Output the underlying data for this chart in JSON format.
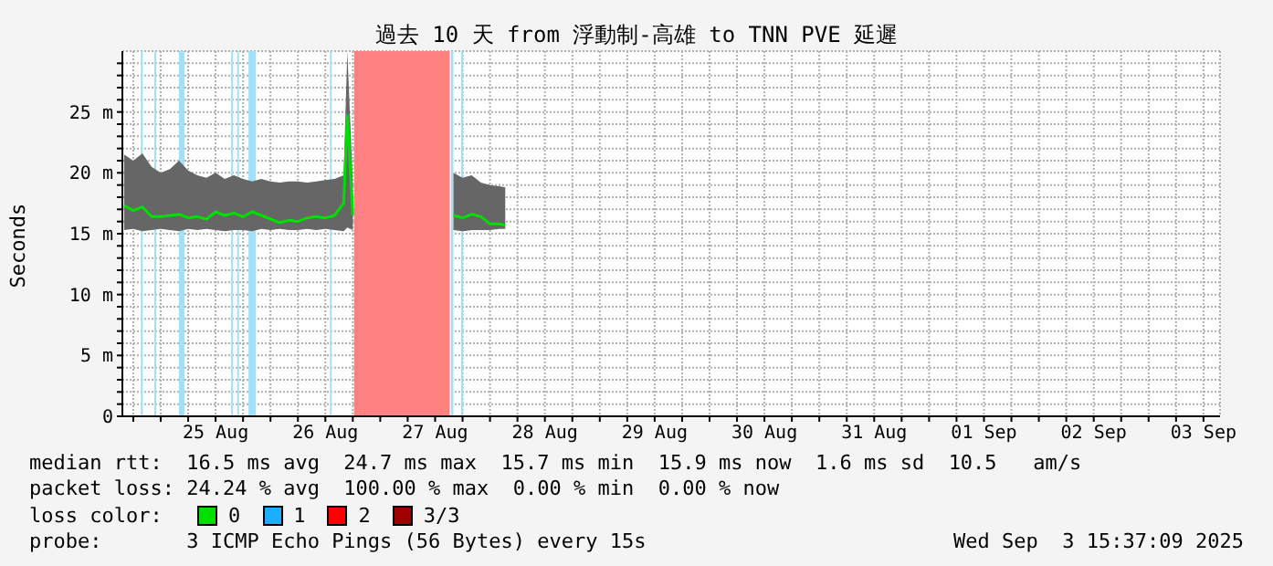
{
  "chart_data": {
    "type": "line",
    "title": "過去 10 天 from 浮動制-高雄 to TNN PVE 延遲",
    "ylabel": "Seconds",
    "legend_title": "loss color:",
    "legend": "bottom",
    "grid": true,
    "marker": "none",
    "line_style": "solid",
    "xlim": [
      "2025-08-24T15:37",
      "2025-09-03T15:37"
    ],
    "xticks": [
      {
        "value": "2025-08-24T18:00",
        "label": null
      },
      {
        "value": "2025-08-25T00:00",
        "label": null
      },
      {
        "value": "2025-08-25T06:00",
        "label": null
      },
      {
        "value": "2025-08-25T12:00",
        "label": "25 Aug"
      },
      {
        "value": "2025-08-25T18:00",
        "label": null
      },
      {
        "value": "2025-08-26T00:00",
        "label": null
      },
      {
        "value": "2025-08-26T06:00",
        "label": null
      },
      {
        "value": "2025-08-26T12:00",
        "label": "26 Aug"
      },
      {
        "value": "2025-08-26T18:00",
        "label": null
      },
      {
        "value": "2025-08-27T00:00",
        "label": null
      },
      {
        "value": "2025-08-27T06:00",
        "label": null
      },
      {
        "value": "2025-08-27T12:00",
        "label": "27 Aug"
      },
      {
        "value": "2025-08-27T18:00",
        "label": null
      },
      {
        "value": "2025-08-28T00:00",
        "label": null
      },
      {
        "value": "2025-08-28T06:00",
        "label": null
      },
      {
        "value": "2025-08-28T12:00",
        "label": "28 Aug"
      },
      {
        "value": "2025-08-28T18:00",
        "label": null
      },
      {
        "value": "2025-08-29T00:00",
        "label": null
      },
      {
        "value": "2025-08-29T06:00",
        "label": null
      },
      {
        "value": "2025-08-29T12:00",
        "label": "29 Aug"
      },
      {
        "value": "2025-08-29T18:00",
        "label": null
      },
      {
        "value": "2025-08-30T00:00",
        "label": null
      },
      {
        "value": "2025-08-30T06:00",
        "label": null
      },
      {
        "value": "2025-08-30T12:00",
        "label": "30 Aug"
      },
      {
        "value": "2025-08-30T18:00",
        "label": null
      },
      {
        "value": "2025-08-31T00:00",
        "label": null
      },
      {
        "value": "2025-08-31T06:00",
        "label": null
      },
      {
        "value": "2025-08-31T12:00",
        "label": "31 Aug"
      },
      {
        "value": "2025-08-31T18:00",
        "label": null
      },
      {
        "value": "2025-09-01T00:00",
        "label": null
      },
      {
        "value": "2025-09-01T06:00",
        "label": null
      },
      {
        "value": "2025-09-01T12:00",
        "label": "01 Sep"
      },
      {
        "value": "2025-09-01T18:00",
        "label": null
      },
      {
        "value": "2025-09-02T00:00",
        "label": null
      },
      {
        "value": "2025-09-02T06:00",
        "label": null
      },
      {
        "value": "2025-09-02T12:00",
        "label": "02 Sep"
      },
      {
        "value": "2025-09-02T18:00",
        "label": null
      },
      {
        "value": "2025-09-03T00:00",
        "label": null
      },
      {
        "value": "2025-09-03T06:00",
        "label": null
      },
      {
        "value": "2025-09-03T12:00",
        "label": "03 Sep"
      }
    ],
    "ylim": [
      0,
      30
    ],
    "yticks": [
      0,
      {
        "value": 1,
        "label": null
      },
      {
        "value": 2,
        "label": null
      },
      {
        "value": 3,
        "label": null
      },
      {
        "value": 4,
        "label": null
      },
      {
        "value": 5,
        "label": "5 m"
      },
      {
        "value": 6,
        "label": null
      },
      {
        "value": 7,
        "label": null
      },
      {
        "value": 8,
        "label": null
      },
      {
        "value": 9,
        "label": null
      },
      {
        "value": 10,
        "label": "10 m"
      },
      {
        "value": 11,
        "label": null
      },
      {
        "value": 12,
        "label": null
      },
      {
        "value": 13,
        "label": null
      },
      {
        "value": 14,
        "label": null
      },
      {
        "value": 15,
        "label": "15 m"
      },
      {
        "value": 16,
        "label": null
      },
      {
        "value": 17,
        "label": null
      },
      {
        "value": 18,
        "label": null
      },
      {
        "value": 19,
        "label": null
      },
      {
        "value": 20,
        "label": "20 m"
      },
      {
        "value": 21,
        "label": null
      },
      {
        "value": 22,
        "label": null
      },
      {
        "value": 23,
        "label": null
      },
      {
        "value": 24,
        "label": null
      },
      {
        "value": 25,
        "label": "25 m"
      },
      {
        "value": 26,
        "label": null
      },
      {
        "value": 27,
        "label": null
      },
      {
        "value": 28,
        "label": null
      },
      {
        "value": 29,
        "label": null
      }
    ],
    "x": [
      "2025-08-24T16:00",
      "2025-08-24T18:00",
      "2025-08-24T20:00",
      "2025-08-24T22:00",
      "2025-08-25T00:00",
      "2025-08-25T02:00",
      "2025-08-25T04:00",
      "2025-08-25T06:00",
      "2025-08-25T08:00",
      "2025-08-25T10:00",
      "2025-08-25T12:00",
      "2025-08-25T14:00",
      "2025-08-25T16:00",
      "2025-08-25T18:00",
      "2025-08-25T20:00",
      "2025-08-25T22:00",
      "2025-08-26T00:00",
      "2025-08-26T02:00",
      "2025-08-26T04:00",
      "2025-08-26T06:00",
      "2025-08-26T08:00",
      "2025-08-26T10:00",
      "2025-08-26T12:00",
      "2025-08-26T14:00",
      "2025-08-26T16:00",
      "2025-08-26T16:48",
      "2025-08-26T18:00",
      "2025-08-27T03:00",
      "2025-08-27T16:00",
      "2025-08-27T18:00",
      "2025-08-27T20:00",
      "2025-08-27T22:00",
      "2025-08-28T00:00",
      "2025-08-28T02:00",
      "2025-08-28T03:20"
    ],
    "series": [
      {
        "name": "0",
        "color": "#00e000",
        "values": [
          17.3,
          16.9,
          17.2,
          16.4,
          16.4,
          16.5,
          16.6,
          16.3,
          16.4,
          16.2,
          16.8,
          16.5,
          16.7,
          16.4,
          16.8,
          16.5,
          16.2,
          15.9,
          16.1,
          16.0,
          16.3,
          16.4,
          16.3,
          16.5,
          17.5,
          24.7,
          16.5,
          null,
          16.5,
          16.3,
          16.6,
          16.4,
          15.8,
          15.8,
          15.7
        ],
        "lower": [
          15.3,
          15.4,
          15.2,
          15.3,
          15.4,
          15.3,
          15.2,
          15.4,
          15.3,
          15.4,
          15.3,
          15.2,
          15.3,
          15.3,
          15.2,
          15.4,
          15.3,
          15.4,
          15.3,
          15.3,
          15.4,
          15.3,
          15.4,
          15.3,
          15.2,
          15.5,
          15.3,
          null,
          15.3,
          15.2,
          15.3,
          15.3,
          15.3,
          15.4,
          15.4
        ],
        "upper": [
          21.5,
          21.0,
          21.6,
          20.5,
          20.0,
          20.3,
          21.0,
          20.2,
          19.8,
          19.6,
          20.0,
          19.5,
          19.8,
          19.5,
          19.3,
          19.5,
          19.3,
          19.2,
          19.3,
          19.3,
          19.2,
          19.3,
          19.4,
          19.5,
          19.8,
          30,
          19.2,
          null,
          20.0,
          19.6,
          19.8,
          19.2,
          19.0,
          18.9,
          18.8
        ]
      },
      {
        "name": "1",
        "color": "#1ab0ff",
        "values": [
          null,
          null,
          null,
          null,
          null,
          null,
          null,
          null,
          null,
          null,
          null,
          null,
          null,
          null,
          null,
          null,
          null,
          null,
          null,
          null,
          null,
          null,
          null,
          null,
          null,
          null,
          null,
          null,
          null,
          null,
          null,
          null,
          null,
          null,
          null
        ]
      },
      {
        "name": "2",
        "color": "#ff0000",
        "values": [
          null,
          null,
          null,
          null,
          null,
          null,
          null,
          null,
          null,
          null,
          null,
          null,
          null,
          null,
          null,
          null,
          null,
          null,
          null,
          null,
          null,
          null,
          null,
          null,
          null,
          null,
          null,
          null,
          null,
          null,
          null,
          null,
          null,
          null,
          null
        ]
      },
      {
        "name": "3/3",
        "color": "#a00000",
        "values": [
          null,
          null,
          null,
          null,
          null,
          null,
          null,
          null,
          null,
          null,
          null,
          null,
          null,
          null,
          null,
          null,
          null,
          null,
          null,
          null,
          null,
          null,
          null,
          null,
          null,
          null,
          null,
          null,
          null,
          null,
          null,
          null,
          null,
          null,
          null
        ]
      }
    ],
    "bands": [
      {
        "axis": "x",
        "from": "2025-08-24T19:40",
        "to": "2025-08-24T20:05",
        "color": "#a0e0f8"
      },
      {
        "axis": "x",
        "from": "2025-08-24T22:35",
        "to": "2025-08-24T23:00",
        "color": "#a0e0f8"
      },
      {
        "axis": "x",
        "from": "2025-08-25T04:00",
        "to": "2025-08-25T05:12",
        "color": "#a0e0f8"
      },
      {
        "axis": "x",
        "from": "2025-08-25T15:24",
        "to": "2025-08-25T15:48",
        "color": "#a0e0f8"
      },
      {
        "axis": "x",
        "from": "2025-08-25T16:43",
        "to": "2025-08-25T17:07",
        "color": "#a0e0f8"
      },
      {
        "axis": "x",
        "from": "2025-08-25T19:12",
        "to": "2025-08-25T20:48",
        "color": "#a0e0f8"
      },
      {
        "axis": "x",
        "from": "2025-08-26T13:00",
        "to": "2025-08-26T13:24",
        "color": "#a0e0f8"
      },
      {
        "axis": "x",
        "from": "2025-08-26T18:17",
        "to": "2025-08-27T15:12",
        "color": "#ff8080"
      },
      {
        "axis": "x",
        "from": "2025-08-27T15:30",
        "to": "2025-08-27T16:00",
        "color": "#a0e0f8"
      },
      {
        "axis": "x",
        "from": "2025-08-27T17:40",
        "to": "2025-08-27T18:05",
        "color": "#a0e0f8"
      }
    ],
    "annotations": [
      "median rtt:  16.5 ms avg  24.7 ms max  15.7 ms min  15.9 ms now  1.6 ms sd  10.5   am/s",
      "packet loss: 24.24 % avg  100.00 % max  0.00 % min  0.00 % now",
      "probe:       3 ICMP Echo Pings (56 Bytes) every 15s",
      "Wed Sep  3 15:37:09 2025"
    ]
  }
}
